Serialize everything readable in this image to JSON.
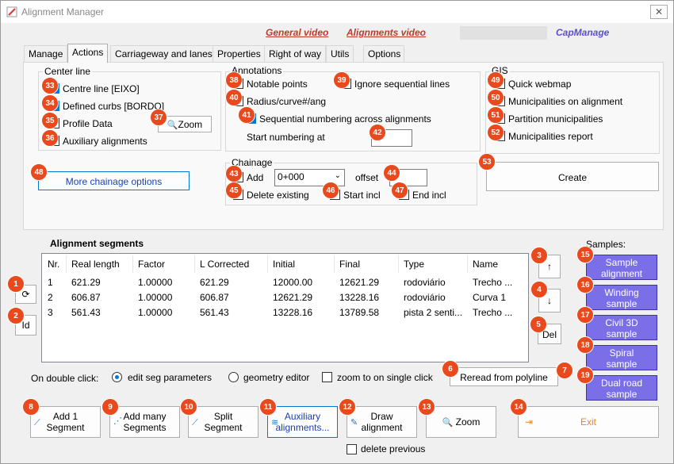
{
  "window": {
    "title": "Alignment Manager",
    "close_label": "✕"
  },
  "header": {
    "general_video": "General video",
    "alignments_video": "Alignments video",
    "capmanage": "CapManage"
  },
  "tabs": [
    "Manage",
    "Actions",
    "Carriageway and lanes",
    "Properties",
    "Right of way",
    "Utils",
    "Options"
  ],
  "centerline": {
    "title": "Center line",
    "items": [
      "Centre line [EIXO]",
      "Defined curbs [BORDO]",
      "Profile Data",
      "Auxiliary alignments"
    ],
    "badges": [
      "33",
      "34",
      "35",
      "36"
    ],
    "zoom": "Zoom",
    "zoom_badge": "37"
  },
  "annotations": {
    "title": "Annotations",
    "notable": "Notable points",
    "notable_badge": "38",
    "ignore": "Ignore sequential lines",
    "ignore_badge": "39",
    "radius": "Radius/curve#/ang",
    "radius_badge": "40",
    "sequential": "Sequential numbering across alignments",
    "sequential_badge": "41",
    "start_at": "Start numbering at",
    "start_badge": "42"
  },
  "gis": {
    "title": "GIS",
    "items": [
      "Quick webmap",
      "Municipalities on alignment",
      "Partition municipalities",
      "Municipalities report"
    ],
    "badges": [
      "49",
      "50",
      "51",
      "52"
    ]
  },
  "chainage": {
    "title": "Chainage",
    "add": "Add",
    "add_badge": "43",
    "value": "0+000",
    "offset": "offset",
    "offset_badge": "44",
    "delete_existing": "Delete existing",
    "delete_badge": "45",
    "start_incl": "Start incl",
    "start_badge": "46",
    "end_incl": "End incl",
    "end_badge": "47"
  },
  "more_chainage": {
    "label": "More chainage options",
    "badge": "48"
  },
  "create": {
    "label": "Create",
    "badge": "53"
  },
  "segments": {
    "title": "Alignment segments",
    "columns": [
      "Nr.",
      "Real length",
      "Factor",
      "L Corrected",
      "Initial",
      "Final",
      "Type",
      "Name"
    ],
    "rows": [
      [
        "1",
        "621.29",
        "1.00000",
        "621.29",
        "12000.00",
        "12621.29",
        "rodoviário",
        "Trecho ..."
      ],
      [
        "2",
        "606.87",
        "1.00000",
        "606.87",
        "12621.29",
        "13228.16",
        "rodoviário",
        "Curva 1"
      ],
      [
        "3",
        "561.43",
        "1.00000",
        "561.43",
        "13228.16",
        "13789.58",
        "pista 2 senti...",
        "Trecho ..."
      ]
    ]
  },
  "side_left": {
    "refresh": "⟳",
    "refresh_badge": "1",
    "id": "Id",
    "id_badge": "2"
  },
  "side_right": {
    "up": "↑",
    "up_badge": "3",
    "down": "↓",
    "down_badge": "4",
    "del": "Del",
    "del_badge": "5"
  },
  "samples": {
    "title": "Samples:",
    "items": [
      [
        "Sample",
        "alignment"
      ],
      [
        "Winding",
        "sample"
      ],
      [
        "Civil 3D",
        "sample"
      ],
      [
        "Spiral",
        "sample"
      ],
      [
        "Dual road",
        "sample"
      ]
    ],
    "badges": [
      "15",
      "16",
      "17",
      "18",
      "19"
    ]
  },
  "dblclick": {
    "label": "On double click:",
    "opt1": "edit seg parameters",
    "opt2": "geometry editor",
    "zoom_single": "zoom to on single click",
    "badge": "6"
  },
  "reread": {
    "label": "Reread from polyline",
    "badge": "7"
  },
  "bottom": {
    "add1": [
      "Add 1",
      "Segment"
    ],
    "add1_badge": "8",
    "addmany": [
      "Add many",
      "Segments"
    ],
    "addmany_badge": "9",
    "split": [
      "Split",
      "Segment"
    ],
    "split_badge": "10",
    "aux": [
      "Auxiliary",
      "alignments..."
    ],
    "aux_badge": "11",
    "draw": [
      "Draw",
      "alignment"
    ],
    "draw_badge": "12",
    "zoom": "Zoom",
    "zoom_badge": "13",
    "exit": "Exit",
    "exit_badge": "14",
    "delete_previous": "delete previous"
  }
}
